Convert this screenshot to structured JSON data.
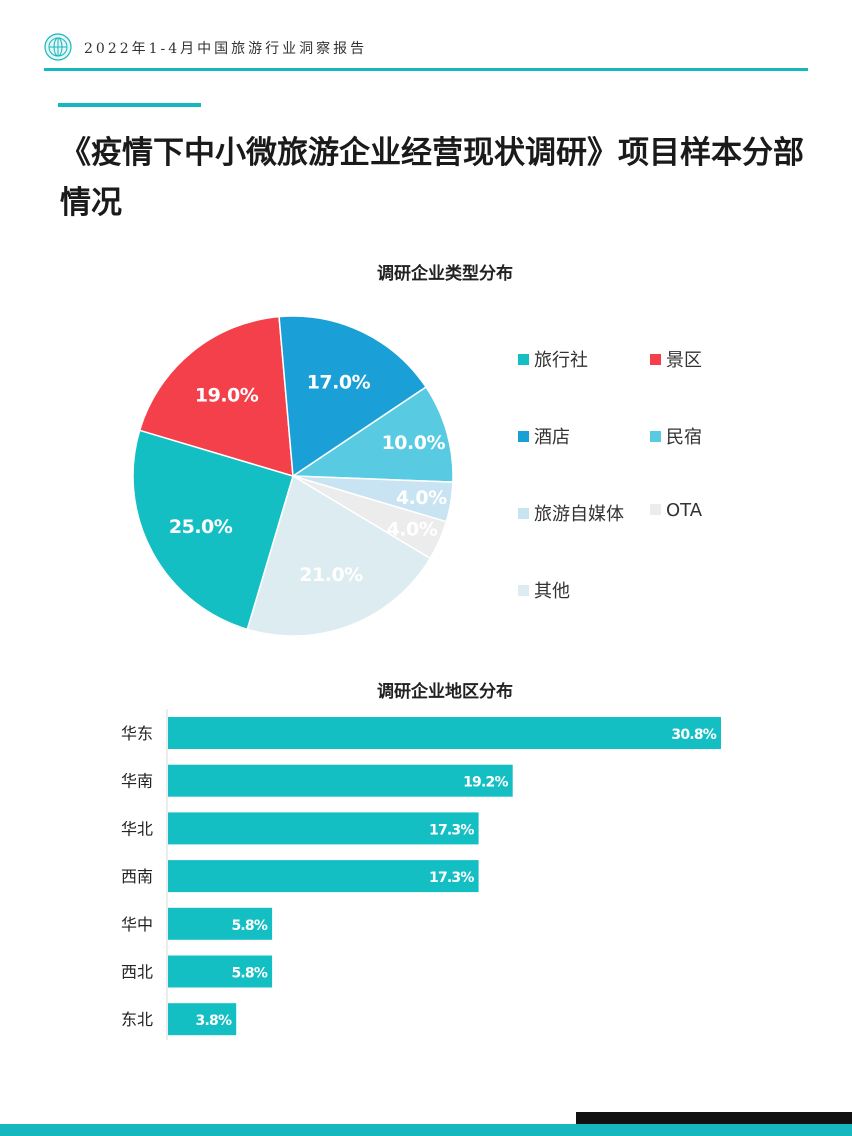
{
  "header": {
    "text": "2022年1-4月中国旅游行业洞察报告",
    "logo_icon": "globe-icon"
  },
  "title": "《疫情下中小微旅游企业经营现状调研》项目样本分部情况",
  "colors": {
    "accent": "#14b8bd",
    "dark": "#111111"
  },
  "chart_data": [
    {
      "type": "pie",
      "title": "调研企业类型分布",
      "labels": [
        "旅行社",
        "景区",
        "酒店",
        "民宿",
        "旅游自媒体",
        "OTA",
        "其他"
      ],
      "values": [
        25.0,
        19.0,
        17.0,
        10.0,
        4.0,
        4.0,
        21.0
      ],
      "value_labels": [
        "25.0%",
        "19.0%",
        "17.0%",
        "10.0%",
        "4.0%",
        "4.0%",
        "21.0%"
      ],
      "colors": [
        "#14bfc4",
        "#f4404a",
        "#1a9fd6",
        "#58cbe3",
        "#c8e3f1",
        "#ececec",
        "#dcecf1"
      ],
      "legend_placement": "right"
    },
    {
      "type": "bar",
      "orientation": "horizontal",
      "title": "调研企业地区分布",
      "categories": [
        "华东",
        "华南",
        "华北",
        "西南",
        "华中",
        "西北",
        "东北"
      ],
      "values": [
        30.8,
        19.2,
        17.3,
        17.3,
        5.8,
        5.8,
        3.8
      ],
      "value_labels": [
        "30.8%",
        "19.2%",
        "17.3%",
        "17.3%",
        "5.8%",
        "5.8%",
        "3.8%"
      ],
      "color": "#14bfc4"
    }
  ]
}
